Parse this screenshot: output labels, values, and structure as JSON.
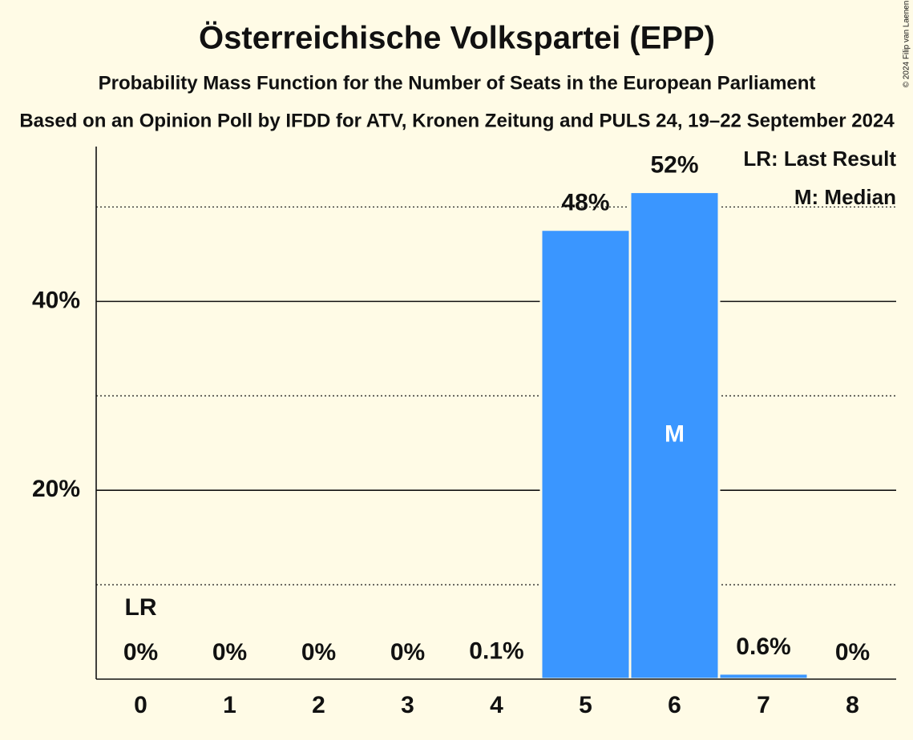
{
  "chart_data": {
    "type": "bar",
    "title": "Österreichische Volkspartei (EPP)",
    "subtitle": "Probability Mass Function for the Number of Seats in the European Parliament",
    "caption": "Based on an Opinion Poll by IFDD for ATV, Kronen Zeitung and PULS 24, 19–22 September 2024",
    "copyright": "© 2024 Filip van Laenen",
    "categories": [
      "0",
      "1",
      "2",
      "3",
      "4",
      "5",
      "6",
      "7",
      "8"
    ],
    "values": [
      0,
      0,
      0,
      0,
      0.1,
      47.6,
      51.6,
      0.6,
      0
    ],
    "value_labels": [
      "0%",
      "0%",
      "0%",
      "0%",
      "0.1%",
      "48%",
      "52%",
      "0.6%",
      "0%"
    ],
    "color": "#3a96ff",
    "ylim": [
      0,
      56.4
    ],
    "yticks": [
      {
        "value": 20,
        "label": "20%"
      },
      {
        "value": 40,
        "label": "40%"
      }
    ],
    "minor_yticks": [
      10,
      30,
      50
    ],
    "grid": true,
    "annotations": [
      {
        "text": "LR",
        "category": "0"
      },
      {
        "text": "M",
        "category": "6"
      }
    ],
    "legend": [
      "LR: Last Result",
      "M: Median"
    ]
  }
}
